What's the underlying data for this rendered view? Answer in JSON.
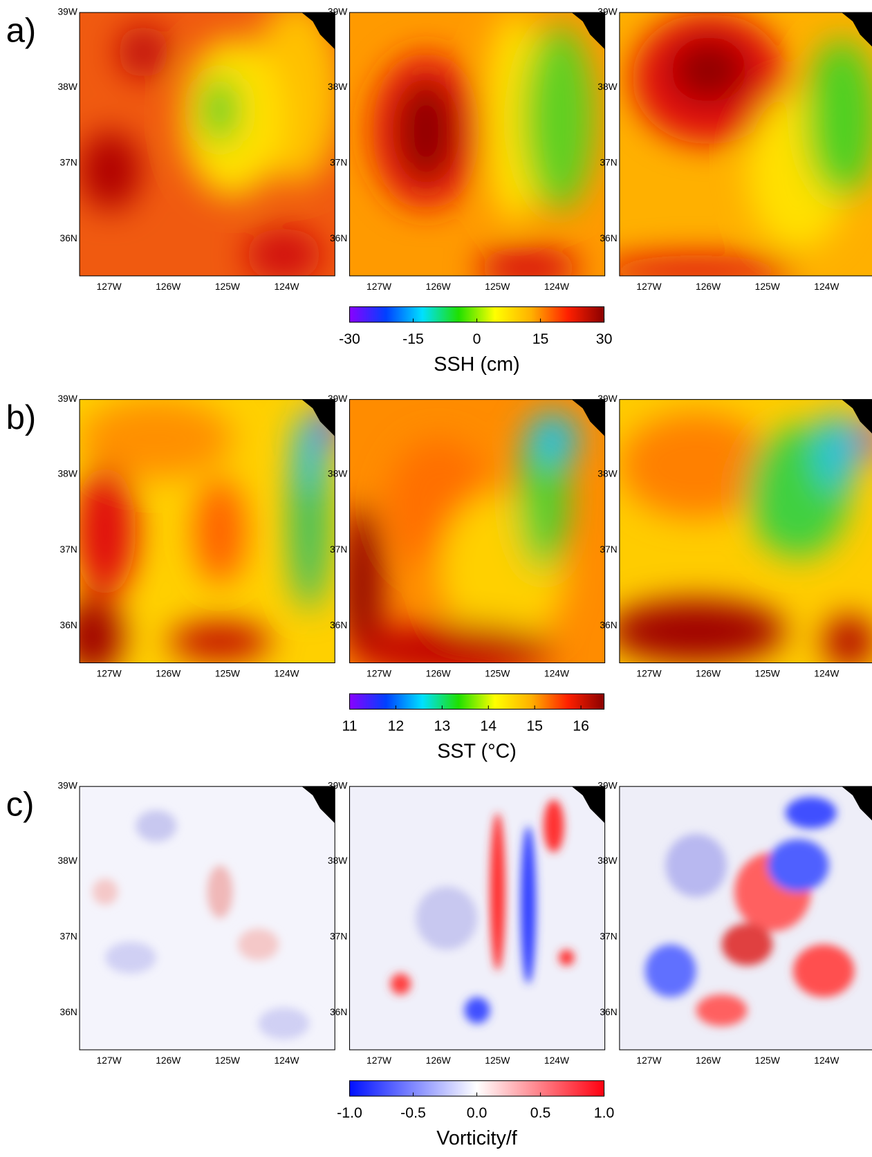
{
  "rows": [
    {
      "label": "a)",
      "colorbar": {
        "label": "SSH (cm)",
        "lim": [
          -30,
          30
        ],
        "ticks": [
          -30,
          -15,
          0,
          15,
          30
        ],
        "colors": [
          "#8a00ff",
          "#0040ff",
          "#00e0ff",
          "#20e000",
          "#ffff00",
          "#ffb000",
          "#ff2000",
          "#8a0000"
        ]
      }
    },
    {
      "label": "b)",
      "colorbar": {
        "label": "SST (°C)",
        "lim": [
          11,
          16.5
        ],
        "ticks": [
          11,
          12,
          13,
          14,
          15,
          16
        ],
        "colors": [
          "#8a00ff",
          "#0040ff",
          "#00e0ff",
          "#20e000",
          "#ffff00",
          "#ffb000",
          "#ff2000",
          "#8a0000"
        ]
      }
    },
    {
      "label": "c)",
      "colorbar": {
        "label": "Vorticity/f",
        "lim": [
          -1,
          1
        ],
        "ticks": [
          {
            "value": -1,
            "label": "-1.0"
          },
          -0.5,
          {
            "value": 0,
            "label": "0.0"
          },
          0.5,
          {
            "value": 1,
            "label": "1.0"
          }
        ],
        "colors": [
          "#0010ff",
          "#ffffff",
          "#ff0010"
        ]
      }
    }
  ],
  "lat_ticks": [
    "39W",
    "38W",
    "37N",
    "36N"
  ],
  "lon_ticks": [
    "127W",
    "126W",
    "125W",
    "124W"
  ]
}
